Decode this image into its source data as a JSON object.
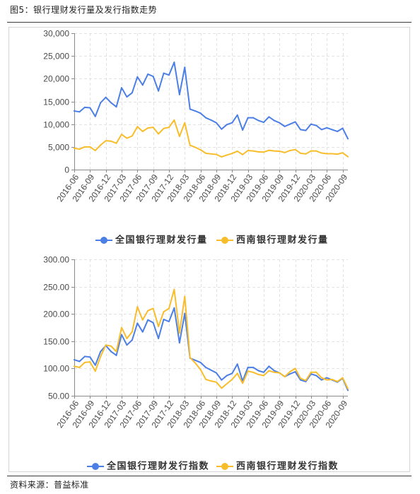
{
  "figure": {
    "title": "图5：银行理财发行量及发行指数走势",
    "source": "资料来源：普益标准"
  },
  "chart_data": [
    {
      "type": "line",
      "x": [
        "2016-06",
        "2016-07",
        "2016-08",
        "2016-09",
        "2016-10",
        "2016-11",
        "2016-12",
        "2017-01",
        "2017-02",
        "2017-03",
        "2017-04",
        "2017-05",
        "2017-06",
        "2017-07",
        "2017-08",
        "2017-09",
        "2017-10",
        "2017-11",
        "2017-12",
        "2018-01",
        "2018-02",
        "2018-03",
        "2018-04",
        "2018-05",
        "2018-06",
        "2018-07",
        "2018-08",
        "2018-09",
        "2018-10",
        "2018-11",
        "2018-12",
        "2019-01",
        "2019-02",
        "2019-03",
        "2019-04",
        "2019-05",
        "2019-06",
        "2019-07",
        "2019-08",
        "2019-09",
        "2019-10",
        "2019-11",
        "2019-12",
        "2020-01",
        "2020-02",
        "2020-03",
        "2020-04",
        "2020-05",
        "2020-06",
        "2020-07",
        "2020-08",
        "2020-09",
        "2020-10"
      ],
      "ylim": [
        0,
        30000
      ],
      "y_ticks": [
        "0",
        "5,000",
        "10,000",
        "15,000",
        "20,000",
        "25,000",
        "30,000"
      ],
      "grid": true,
      "legend_position": "bottom",
      "series": [
        {
          "name": "全国银行理财发行量",
          "color": "#4c7fe6",
          "values": [
            12900,
            12700,
            13700,
            13600,
            11700,
            14700,
            15900,
            14700,
            13800,
            18000,
            16000,
            16900,
            20400,
            18600,
            21000,
            20500,
            17300,
            21200,
            20800,
            23600,
            16500,
            22500,
            13300,
            12900,
            12400,
            11400,
            10900,
            10300,
            8900,
            9900,
            10300,
            12000,
            8700,
            11400,
            11400,
            10800,
            10400,
            11600,
            10800,
            10300,
            9500,
            10000,
            10500,
            8800,
            8600,
            10000,
            9700,
            8800,
            9200,
            8800,
            8400,
            9100,
            6800
          ]
        },
        {
          "name": "西南银行理财发行量",
          "color": "#f8bd2b",
          "values": [
            4700,
            4500,
            5000,
            5000,
            4200,
            5400,
            6350,
            6250,
            5800,
            7750,
            6900,
            7400,
            9450,
            8400,
            9150,
            9300,
            7850,
            9050,
            9300,
            10900,
            7300,
            10300,
            5350,
            4900,
            4350,
            3600,
            3450,
            3350,
            2800,
            3200,
            3550,
            4050,
            3300,
            4200,
            4100,
            3900,
            3850,
            4250,
            4100,
            4050,
            3750,
            4200,
            4400,
            3600,
            3450,
            4100,
            4100,
            3650,
            3500,
            3500,
            3400,
            3700,
            2850
          ]
        }
      ]
    },
    {
      "type": "line",
      "x": [
        "2016-06",
        "2016-07",
        "2016-08",
        "2016-09",
        "2016-10",
        "2016-11",
        "2016-12",
        "2017-01",
        "2017-02",
        "2017-03",
        "2017-04",
        "2017-05",
        "2017-06",
        "2017-07",
        "2017-08",
        "2017-09",
        "2017-10",
        "2017-11",
        "2017-12",
        "2018-01",
        "2018-02",
        "2018-03",
        "2018-04",
        "2018-05",
        "2018-06",
        "2018-07",
        "2018-08",
        "2018-09",
        "2018-10",
        "2018-11",
        "2018-12",
        "2019-01",
        "2019-02",
        "2019-03",
        "2019-04",
        "2019-05",
        "2019-06",
        "2019-07",
        "2019-08",
        "2019-09",
        "2019-10",
        "2019-11",
        "2019-12",
        "2020-01",
        "2020-02",
        "2020-03",
        "2020-04",
        "2020-05",
        "2020-06",
        "2020-07",
        "2020-08",
        "2020-09",
        "2020-10"
      ],
      "ylim": [
        50,
        300
      ],
      "y_ticks": [
        "50.00",
        "100.00",
        "150.00",
        "200.00",
        "250.00",
        "300.00"
      ],
      "grid": true,
      "legend_position": "bottom",
      "series": [
        {
          "name": "全国银行理财发行指数",
          "color": "#4c7fe6",
          "values": [
            116,
            113,
            122,
            121,
            106,
            131,
            142,
            131,
            124,
            162,
            143,
            152,
            183,
            167,
            189,
            184,
            155,
            190,
            186,
            211,
            147,
            201,
            119,
            115,
            111,
            102,
            97,
            92,
            79,
            87,
            91,
            108,
            77,
            102,
            102,
            96,
            93,
            104,
            96,
            92,
            85,
            90,
            94,
            79,
            76,
            90,
            87,
            79,
            83,
            79,
            75,
            82,
            60
          ]
        },
        {
          "name": "西南银行理财发行指数",
          "color": "#f8bd2b",
          "values": [
            104,
            102,
            111,
            112,
            95,
            122,
            143,
            141,
            131,
            175,
            155,
            167,
            213,
            189,
            206,
            210,
            177,
            204,
            210,
            245,
            165,
            232,
            120,
            110,
            98,
            80,
            77,
            75,
            64,
            72,
            80,
            91,
            73,
            95,
            93,
            89,
            87,
            96,
            93,
            92,
            85,
            94,
            100,
            82,
            78,
            93,
            93,
            83,
            79,
            80,
            76,
            83,
            63
          ]
        }
      ]
    }
  ]
}
